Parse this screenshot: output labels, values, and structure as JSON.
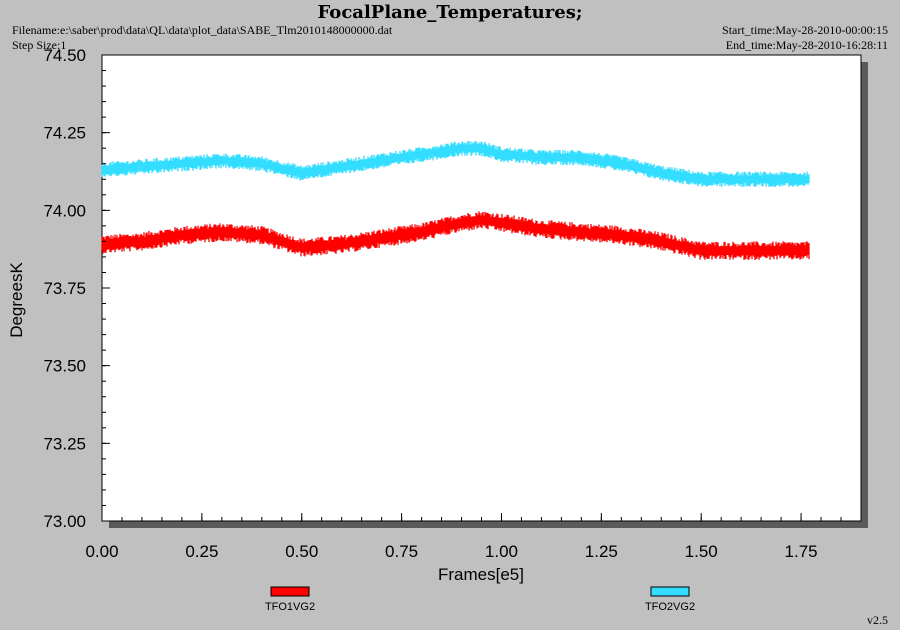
{
  "header": {
    "title": "FocalPlane_Temperatures;",
    "filename": "Filename:e:\\saber\\prod\\data\\QL\\data\\plot_data\\SABE_Tlm2010148000000.dat",
    "step_size": "Step Size:1",
    "start_time": "Start_time:May-28-2010-00:00:15",
    "end_time": "End_time:May-28-2010-16:28:11"
  },
  "version": "v2.5",
  "chart_data": {
    "type": "line",
    "title": "FocalPlane_Temperatures;",
    "xlabel": "Frames[e5]",
    "ylabel": "DegreesK",
    "xlim": [
      0.0,
      1.9
    ],
    "ylim": [
      73.0,
      74.5
    ],
    "x_ticks": [
      0.0,
      0.25,
      0.5,
      0.75,
      1.0,
      1.25,
      1.5,
      1.75
    ],
    "x_tick_labels": [
      "0.00",
      "0.25",
      "0.50",
      "0.75",
      "1.00",
      "1.25",
      "1.50",
      "1.75"
    ],
    "y_ticks": [
      73.0,
      73.25,
      73.5,
      73.75,
      74.0,
      74.25,
      74.5
    ],
    "y_tick_labels": [
      "73.00",
      "73.25",
      "73.50",
      "73.75",
      "74.00",
      "74.25",
      "74.50"
    ],
    "grid": false,
    "legend_position": "bottom",
    "series": [
      {
        "name": "TFO1VG2",
        "color": "#ff0000",
        "noise_band": 0.03,
        "x": [
          0.0,
          0.1,
          0.2,
          0.3,
          0.4,
          0.5,
          0.6,
          0.7,
          0.8,
          0.9,
          0.95,
          1.0,
          1.1,
          1.2,
          1.3,
          1.4,
          1.5,
          1.6,
          1.7,
          1.77
        ],
        "y": [
          73.89,
          73.9,
          73.92,
          73.93,
          73.92,
          73.88,
          73.89,
          73.91,
          73.93,
          73.96,
          73.97,
          73.96,
          73.94,
          73.93,
          73.92,
          73.9,
          73.87,
          73.87,
          73.87,
          73.87
        ]
      },
      {
        "name": "TFO2VG2",
        "color": "#33ddff",
        "noise_band": 0.025,
        "x": [
          0.0,
          0.1,
          0.2,
          0.3,
          0.4,
          0.5,
          0.6,
          0.7,
          0.8,
          0.9,
          0.95,
          1.0,
          1.1,
          1.2,
          1.3,
          1.4,
          1.5,
          1.6,
          1.7,
          1.77
        ],
        "y": [
          74.13,
          74.14,
          74.15,
          74.16,
          74.15,
          74.12,
          74.14,
          74.16,
          74.18,
          74.2,
          74.2,
          74.18,
          74.17,
          74.17,
          74.15,
          74.12,
          74.1,
          74.1,
          74.1,
          74.1
        ]
      }
    ]
  }
}
